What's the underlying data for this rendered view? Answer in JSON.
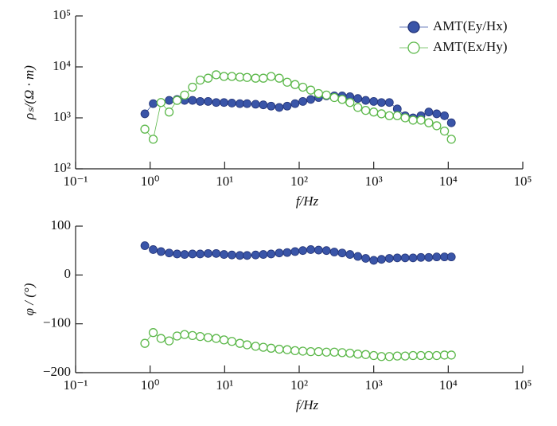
{
  "chart_data": [
    {
      "type": "line",
      "xscale": "log",
      "yscale": "log",
      "xlabel": "f/Hz",
      "ylabel": "ρₛ/(Ω · m)",
      "xlim": [
        0.1,
        100000
      ],
      "ylim": [
        100,
        100000
      ],
      "xticks": [
        {
          "value": 0.1,
          "label": "10⁻¹"
        },
        {
          "value": 1,
          "label": "10⁰"
        },
        {
          "value": 10,
          "label": "10¹"
        },
        {
          "value": 100,
          "label": "10²"
        },
        {
          "value": 1000,
          "label": "10³"
        },
        {
          "value": 10000,
          "label": "10⁴"
        },
        {
          "value": 100000,
          "label": "10⁵"
        }
      ],
      "yticks": [
        {
          "value": 100,
          "label": "10²"
        },
        {
          "value": 1000,
          "label": "10³"
        },
        {
          "value": 10000,
          "label": "10⁴"
        },
        {
          "value": 100000,
          "label": "10⁵"
        }
      ],
      "legend": "upper right",
      "x": [
        0.85,
        1.1,
        1.4,
        1.8,
        2.3,
        2.9,
        3.7,
        4.7,
        6,
        7.7,
        9.8,
        12.5,
        16,
        20,
        26,
        33,
        42,
        54,
        69,
        88,
        112,
        143,
        182,
        232,
        296,
        377,
        480,
        612,
        780,
        1000,
        1270,
        1620,
        2070,
        2640,
        3370,
        4300,
        5480,
        7000,
        8900,
        11000
      ],
      "series": [
        {
          "name": "AMT(Ey/Hx)",
          "color": "#3a55a8",
          "marker": "filled",
          "values": [
            1200,
            1900,
            2000,
            2200,
            2300,
            2200,
            2200,
            2100,
            2100,
            2000,
            2000,
            1950,
            1900,
            1900,
            1850,
            1800,
            1700,
            1600,
            1700,
            1900,
            2100,
            2300,
            2500,
            2700,
            2700,
            2700,
            2600,
            2400,
            2200,
            2100,
            2000,
            2000,
            1500,
            1100,
            1000,
            1100,
            1300,
            1200,
            1100,
            800
          ]
        },
        {
          "name": "AMT(Ex/Hy)",
          "color": "#5cb84a",
          "marker": "open",
          "values": [
            600,
            380,
            2000,
            1300,
            2200,
            2800,
            4000,
            5500,
            6000,
            7000,
            6500,
            6500,
            6300,
            6200,
            6000,
            6000,
            6500,
            6000,
            5000,
            4500,
            4000,
            3500,
            3000,
            2800,
            2500,
            2300,
            2000,
            1600,
            1400,
            1300,
            1200,
            1100,
            1100,
            1000,
            900,
            900,
            800,
            700,
            550,
            380
          ]
        }
      ]
    },
    {
      "type": "line",
      "xscale": "log",
      "xlabel": "f/Hz",
      "ylabel": "φ / (°)",
      "xlim": [
        0.1,
        100000
      ],
      "ylim": [
        -200,
        100
      ],
      "xticks": [
        {
          "value": 0.1,
          "label": "10⁻¹"
        },
        {
          "value": 1,
          "label": "10⁰"
        },
        {
          "value": 10,
          "label": "10¹"
        },
        {
          "value": 100,
          "label": "10²"
        },
        {
          "value": 1000,
          "label": "10³"
        },
        {
          "value": 10000,
          "label": "10⁴"
        },
        {
          "value": 100000,
          "label": "10⁵"
        }
      ],
      "yticks": [
        {
          "value": -200,
          "label": "−200"
        },
        {
          "value": -100,
          "label": "−100"
        },
        0,
        100
      ],
      "x": [
        0.85,
        1.1,
        1.4,
        1.8,
        2.3,
        2.9,
        3.7,
        4.7,
        6,
        7.7,
        9.8,
        12.5,
        16,
        20,
        26,
        33,
        42,
        54,
        69,
        88,
        112,
        143,
        182,
        232,
        296,
        377,
        480,
        612,
        780,
        1000,
        1270,
        1620,
        2070,
        2640,
        3370,
        4300,
        5480,
        7000,
        8900,
        11000
      ],
      "series": [
        {
          "name": "AMT(Ey/Hx)",
          "color": "#3a55a8",
          "marker": "filled",
          "values": [
            60,
            52,
            48,
            45,
            43,
            42,
            43,
            43,
            44,
            44,
            42,
            41,
            40,
            40,
            41,
            42,
            43,
            45,
            46,
            48,
            50,
            52,
            51,
            50,
            47,
            45,
            42,
            38,
            34,
            30,
            32,
            34,
            35,
            35,
            35,
            36,
            36,
            37,
            37,
            37
          ]
        },
        {
          "name": "AMT(Ex/Hy)",
          "color": "#5cb84a",
          "marker": "open",
          "values": [
            -140,
            -118,
            -130,
            -135,
            -125,
            -122,
            -124,
            -126,
            -128,
            -130,
            -133,
            -136,
            -140,
            -143,
            -146,
            -148,
            -150,
            -152,
            -153,
            -155,
            -156,
            -157,
            -157,
            -158,
            -158,
            -159,
            -160,
            -162,
            -163,
            -165,
            -167,
            -167,
            -166,
            -166,
            -165,
            -165,
            -165,
            -165,
            -164,
            -164
          ]
        }
      ]
    }
  ]
}
